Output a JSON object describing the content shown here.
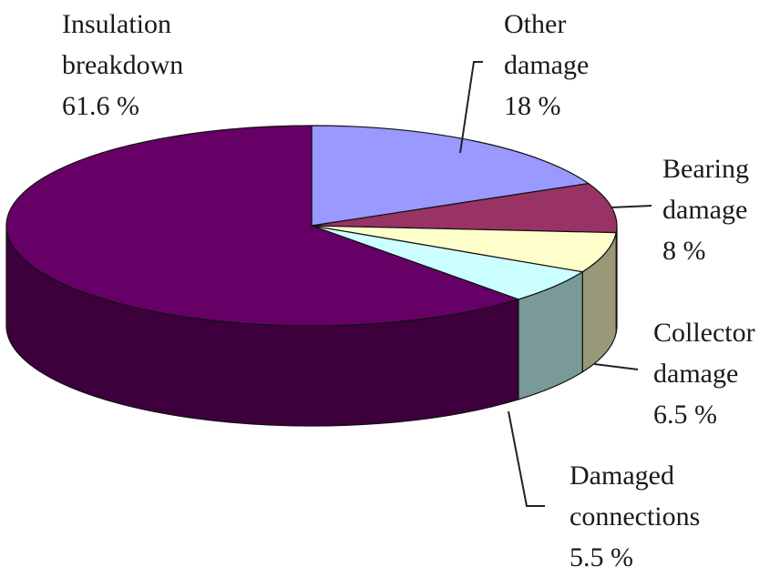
{
  "chart_data": {
    "type": "pie",
    "categories": [
      "Other damage",
      "Bearing damage",
      "Collector damage",
      "Damaged connections",
      "Insulation breakdown"
    ],
    "values": [
      18,
      8,
      6.5,
      5.5,
      61.6
    ],
    "value_labels": [
      "18 %",
      "8 %",
      "6.5 %",
      "5.5 %",
      "61.6 %"
    ],
    "colors": [
      "#9999ff",
      "#993366",
      "#ffffcc",
      "#ccffff",
      "#660066"
    ]
  }
}
